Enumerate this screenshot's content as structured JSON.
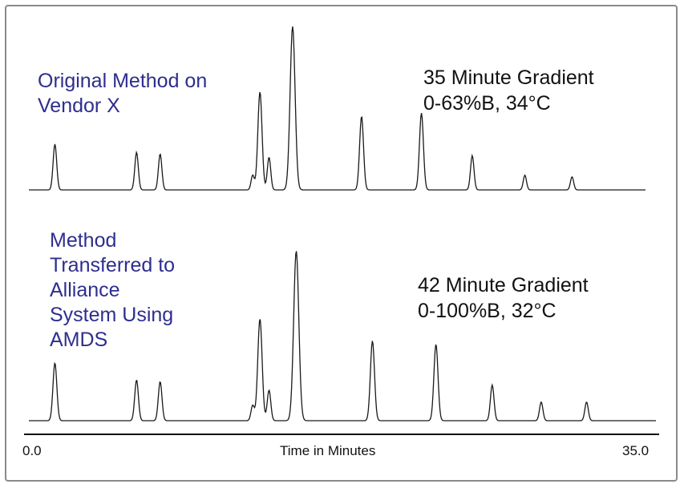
{
  "chart_data": [
    {
      "type": "line",
      "panel_label": "Original Method on\nVendor X",
      "annotation_line1": "35 Minute Gradient",
      "annotation_line2": "0-63%B, 34°C",
      "peaks": [
        {
          "t": 1.7,
          "h": 0.28
        },
        {
          "t": 6.2,
          "h": 0.23
        },
        {
          "t": 7.5,
          "h": 0.22
        },
        {
          "t": 12.6,
          "h": 0.09
        },
        {
          "t": 13.0,
          "h": 0.6
        },
        {
          "t": 13.5,
          "h": 0.2
        },
        {
          "t": 14.8,
          "h": 1.0
        },
        {
          "t": 18.6,
          "h": 0.45
        },
        {
          "t": 21.9,
          "h": 0.47
        },
        {
          "t": 24.7,
          "h": 0.21
        },
        {
          "t": 27.6,
          "h": 0.09
        },
        {
          "t": 30.2,
          "h": 0.08
        }
      ]
    },
    {
      "type": "line",
      "panel_label": "Method\nTransferred to\nAlliance\nSystem Using\nAMDS",
      "annotation_line1": "42 Minute Gradient",
      "annotation_line2": "0-100%B, 32°C",
      "peaks": [
        {
          "t": 1.7,
          "h": 0.34
        },
        {
          "t": 6.2,
          "h": 0.24
        },
        {
          "t": 7.5,
          "h": 0.23
        },
        {
          "t": 12.6,
          "h": 0.09
        },
        {
          "t": 13.0,
          "h": 0.6
        },
        {
          "t": 13.5,
          "h": 0.18
        },
        {
          "t": 15.0,
          "h": 1.0
        },
        {
          "t": 19.2,
          "h": 0.47
        },
        {
          "t": 22.7,
          "h": 0.45
        },
        {
          "t": 25.8,
          "h": 0.21
        },
        {
          "t": 28.5,
          "h": 0.11
        },
        {
          "t": 31.0,
          "h": 0.11
        }
      ]
    }
  ],
  "x_axis": {
    "label": "Time in Minutes",
    "min_label": "0.0",
    "max_label": "35.0",
    "min": 0,
    "max": 35
  },
  "colors": {
    "trace": "#1a1a1a",
    "panel_label": "#2e2e8f",
    "frame": "#8a8a8a"
  }
}
